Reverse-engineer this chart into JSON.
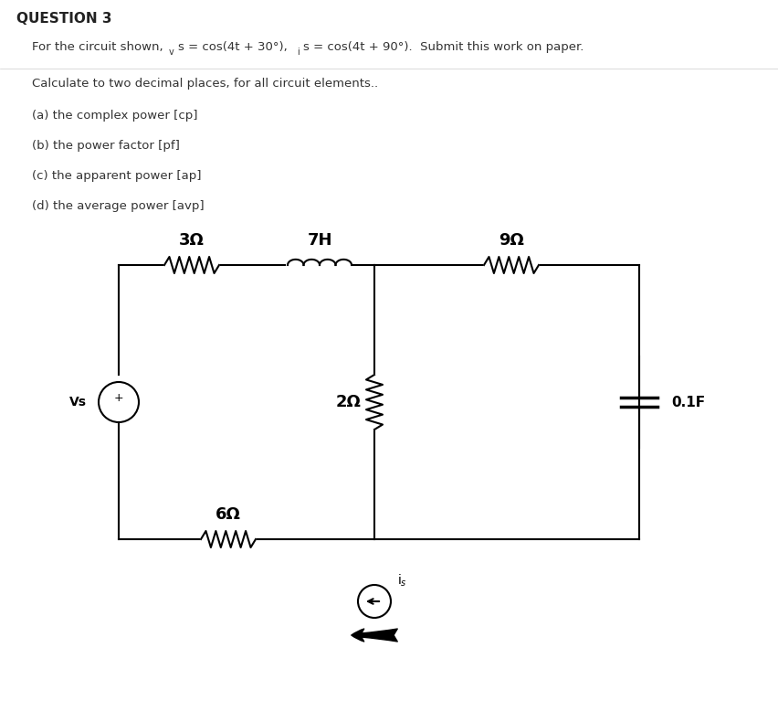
{
  "title": "QUESTION 3",
  "line1": "For the circuit shown, $^{v}s = \\cos(4t + 30°)$, $^{i}s = \\cos(4t + 90°)$.  Submit this work on paper.",
  "line2": "Calculate to two decimal places, for all circuit elements..",
  "items": [
    "(a) the complex power [cp]",
    "(b) the power factor [pf]",
    "(c) the apparent power [ap]",
    "(d) the average power [avp]"
  ],
  "bg_color": "#ffffff",
  "text_color": "#333333",
  "circuit_color": "#000000",
  "label_3ohm": "3Ω",
  "label_7H": "7H",
  "label_9ohm": "9Ω",
  "label_2ohm": "2Ω",
  "label_6ohm": "6Ω",
  "label_cap": "0.1F",
  "label_vs": "Vs",
  "label_is": "i$_s$"
}
